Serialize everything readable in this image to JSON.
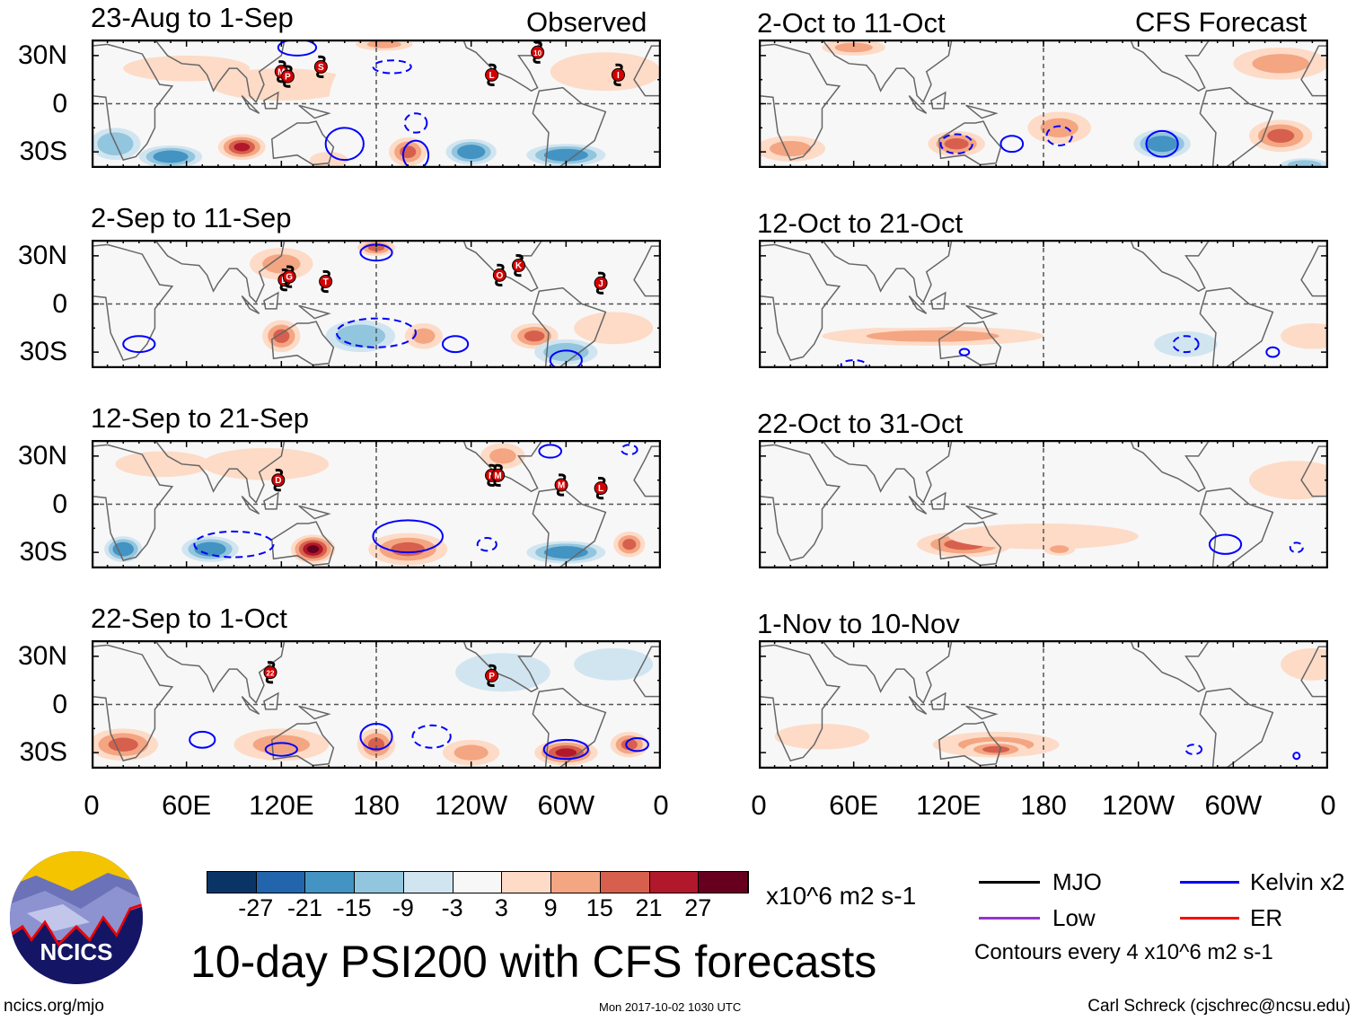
{
  "title": "10-day PSI200 with CFS forecasts",
  "left_tag": "Observed",
  "right_tag": "CFS Forecast",
  "lat_labels": [
    "30N",
    "0",
    "30S"
  ],
  "lon_labels": [
    "0",
    "60E",
    "120E",
    "180",
    "120W",
    "60W",
    "0"
  ],
  "panels": [
    {
      "title": "23-Aug to 1-Sep",
      "blobs": [
        [
          15,
          -25,
          -15,
          16,
          10
        ],
        [
          50,
          -33,
          -21,
          20,
          7
        ],
        [
          95,
          -27,
          21,
          15,
          8
        ],
        [
          120,
          12,
          3,
          45,
          10
        ],
        [
          170,
          0,
          -3,
          20,
          28
        ],
        [
          200,
          -30,
          15,
          12,
          9
        ],
        [
          240,
          -30,
          -21,
          16,
          8
        ],
        [
          300,
          -32,
          -21,
          25,
          7
        ],
        [
          325,
          20,
          3,
          35,
          12
        ],
        [
          60,
          22,
          3,
          40,
          8
        ],
        [
          185,
          37,
          9,
          18,
          4
        ],
        [
          150,
          -35,
          3,
          12,
          5
        ]
      ],
      "contours": [
        [
          160,
          -25,
          12,
          10,
          0
        ],
        [
          205,
          -32,
          8,
          9,
          0
        ],
        [
          205,
          -12,
          7,
          6,
          1
        ],
        [
          190,
          23,
          12,
          4,
          1
        ],
        [
          130,
          35,
          12,
          5,
          0
        ]
      ],
      "storms": [
        [
          "M",
          120,
          20
        ],
        [
          "P",
          124,
          17
        ],
        [
          "S",
          145,
          23
        ],
        [
          "L",
          253,
          18
        ],
        [
          "10",
          282,
          32
        ],
        [
          "I",
          333,
          18
        ]
      ]
    },
    {
      "title": "2-Sep to 11-Sep",
      "blobs": [
        [
          120,
          25,
          9,
          20,
          10
        ],
        [
          180,
          35,
          15,
          12,
          5
        ],
        [
          120,
          -20,
          15,
          12,
          10
        ],
        [
          170,
          -20,
          -15,
          22,
          10
        ],
        [
          210,
          -20,
          9,
          12,
          8
        ],
        [
          280,
          -20,
          15,
          15,
          8
        ],
        [
          300,
          -30,
          -15,
          20,
          8
        ],
        [
          30,
          -25,
          -3,
          20,
          10
        ],
        [
          250,
          15,
          -3,
          30,
          12
        ],
        [
          330,
          -15,
          3,
          25,
          10
        ],
        [
          320,
          35,
          -3,
          20,
          5
        ]
      ],
      "contours": [
        [
          180,
          32,
          10,
          5,
          0
        ],
        [
          180,
          -18,
          25,
          9,
          1
        ],
        [
          230,
          -25,
          8,
          5,
          0
        ],
        [
          300,
          -35,
          10,
          6,
          0
        ],
        [
          30,
          -25,
          10,
          5,
          0
        ]
      ],
      "storms": [
        [
          "D",
          122,
          15
        ],
        [
          "G",
          125,
          17
        ],
        [
          "T",
          148,
          14
        ],
        [
          "O",
          258,
          18
        ],
        [
          "K",
          270,
          24
        ],
        [
          "J",
          322,
          13
        ]
      ]
    },
    {
      "title": "12-Sep to 21-Sep",
      "blobs": [
        [
          20,
          -28,
          -21,
          12,
          8
        ],
        [
          75,
          -28,
          -21,
          18,
          8
        ],
        [
          140,
          -28,
          27,
          14,
          9
        ],
        [
          110,
          25,
          3,
          40,
          10
        ],
        [
          200,
          15,
          -3,
          40,
          18
        ],
        [
          200,
          -28,
          15,
          25,
          10
        ],
        [
          300,
          -30,
          -21,
          25,
          7
        ],
        [
          340,
          -25,
          15,
          10,
          8
        ],
        [
          260,
          30,
          9,
          14,
          8
        ],
        [
          45,
          25,
          3,
          30,
          8
        ]
      ],
      "contours": [
        [
          200,
          -20,
          22,
          10,
          0
        ],
        [
          90,
          -25,
          25,
          8,
          1
        ],
        [
          250,
          -25,
          6,
          4,
          1
        ],
        [
          290,
          33,
          7,
          4,
          0
        ],
        [
          340,
          34,
          5,
          3,
          1
        ]
      ],
      "storms": [
        [
          "D",
          118,
          15
        ],
        [
          "N",
          253,
          18
        ],
        [
          "M",
          257,
          18
        ],
        [
          "M",
          297,
          12
        ],
        [
          "L",
          322,
          10
        ]
      ]
    },
    {
      "title": "22-Sep to 1-Oct",
      "blobs": [
        [
          20,
          -25,
          15,
          22,
          10
        ],
        [
          120,
          -25,
          9,
          30,
          10
        ],
        [
          180,
          -25,
          15,
          12,
          10
        ],
        [
          240,
          -30,
          9,
          18,
          8
        ],
        [
          300,
          -30,
          21,
          20,
          8
        ],
        [
          340,
          -25,
          15,
          12,
          8
        ],
        [
          260,
          20,
          -9,
          30,
          12
        ],
        [
          330,
          25,
          -9,
          25,
          10
        ],
        [
          90,
          20,
          -3,
          35,
          8
        ],
        [
          200,
          20,
          -3,
          30,
          8
        ]
      ],
      "contours": [
        [
          70,
          -22,
          8,
          5,
          0
        ],
        [
          120,
          -28,
          10,
          4,
          0
        ],
        [
          180,
          -20,
          10,
          8,
          0
        ],
        [
          215,
          -20,
          12,
          7,
          1
        ],
        [
          300,
          -28,
          14,
          6,
          0
        ],
        [
          345,
          -25,
          7,
          4,
          0
        ]
      ],
      "storms": [
        [
          "22",
          113,
          20
        ],
        [
          "P",
          253,
          18
        ]
      ]
    },
    {
      "title": "2-Oct to 11-Oct",
      "blobs": [
        [
          20,
          -28,
          9,
          22,
          8
        ],
        [
          125,
          -25,
          15,
          18,
          8
        ],
        [
          190,
          -15,
          9,
          20,
          10
        ],
        [
          255,
          -25,
          -21,
          18,
          9
        ],
        [
          330,
          -20,
          15,
          20,
          10
        ],
        [
          110,
          10,
          -3,
          40,
          10
        ],
        [
          240,
          15,
          -3,
          40,
          10
        ],
        [
          330,
          25,
          9,
          30,
          10
        ],
        [
          60,
          35,
          9,
          20,
          5
        ],
        [
          345,
          -38,
          -15,
          15,
          4
        ]
      ],
      "contours": [
        [
          255,
          -25,
          10,
          8,
          0
        ],
        [
          160,
          -25,
          7,
          5,
          0
        ],
        [
          125,
          -25,
          10,
          6,
          1
        ],
        [
          190,
          -20,
          8,
          6,
          1
        ]
      ],
      "storms": []
    },
    {
      "title": "12-Oct to 21-Oct",
      "blobs": [
        [
          110,
          -20,
          9,
          70,
          6
        ],
        [
          90,
          -10,
          -3,
          60,
          5
        ],
        [
          200,
          20,
          -3,
          60,
          8
        ],
        [
          270,
          -25,
          -9,
          20,
          8
        ],
        [
          60,
          20,
          -3,
          30,
          6
        ],
        [
          350,
          -20,
          3,
          20,
          8
        ]
      ],
      "contours": [
        [
          270,
          -25,
          8,
          5,
          1
        ],
        [
          130,
          -30,
          3,
          2,
          0
        ],
        [
          325,
          -30,
          4,
          3,
          0
        ],
        [
          60,
          -38,
          8,
          3,
          1
        ]
      ],
      "storms": []
    },
    {
      "title": "22-Oct to 31-Oct",
      "blobs": [
        [
          130,
          -25,
          15,
          30,
          8
        ],
        [
          180,
          -20,
          3,
          60,
          8
        ],
        [
          190,
          -28,
          9,
          10,
          4
        ],
        [
          120,
          20,
          -3,
          40,
          8
        ],
        [
          220,
          20,
          -3,
          60,
          8
        ],
        [
          340,
          15,
          3,
          30,
          12
        ],
        [
          300,
          -25,
          -3,
          20,
          8
        ]
      ],
      "contours": [
        [
          295,
          -25,
          10,
          6,
          0
        ],
        [
          340,
          -27,
          4,
          3,
          1
        ]
      ],
      "storms": []
    },
    {
      "title": "1-Nov to 10-Nov",
      "blobs": [
        [
          150,
          -25,
          9,
          40,
          8
        ],
        [
          150,
          -28,
          15,
          20,
          5
        ],
        [
          120,
          20,
          -3,
          40,
          8
        ],
        [
          220,
          20,
          -3,
          60,
          8
        ],
        [
          300,
          -20,
          -3,
          30,
          8
        ],
        [
          40,
          -20,
          3,
          30,
          8
        ],
        [
          350,
          25,
          3,
          20,
          10
        ]
      ],
      "contours": [
        [
          275,
          -28,
          5,
          3,
          1
        ],
        [
          340,
          -32,
          2,
          2,
          0
        ]
      ],
      "storms": []
    }
  ],
  "colorbar": {
    "colors": [
      "#0b3466",
      "#2265ad",
      "#4393c3",
      "#92c5de",
      "#d1e5f0",
      "#f7f7f7",
      "#fddbc7",
      "#f4a582",
      "#d6604d",
      "#b2182b",
      "#67001f"
    ],
    "ticks": [
      "-27",
      "-21",
      "-15",
      "-9",
      "-3",
      "3",
      "9",
      "15",
      "21",
      "27"
    ],
    "units": "x10^6 m2 s-1"
  },
  "legend": {
    "items": [
      {
        "label": "MJO",
        "color": "#000000"
      },
      {
        "label": "Kelvin x2",
        "color": "#0000ff"
      },
      {
        "label": "Low",
        "color": "#9932cc"
      },
      {
        "label": "ER",
        "color": "#ff0000"
      }
    ],
    "contours_note": "Contours every 4 x10^6 m2 s-1"
  },
  "logo": {
    "text": "NCICS"
  },
  "footer": {
    "left": "ncics.org/mjo",
    "center": "Mon 2017-10-02 1030 UTC",
    "right": "Carl Schreck (cjschrec@ncsu.edu)"
  }
}
